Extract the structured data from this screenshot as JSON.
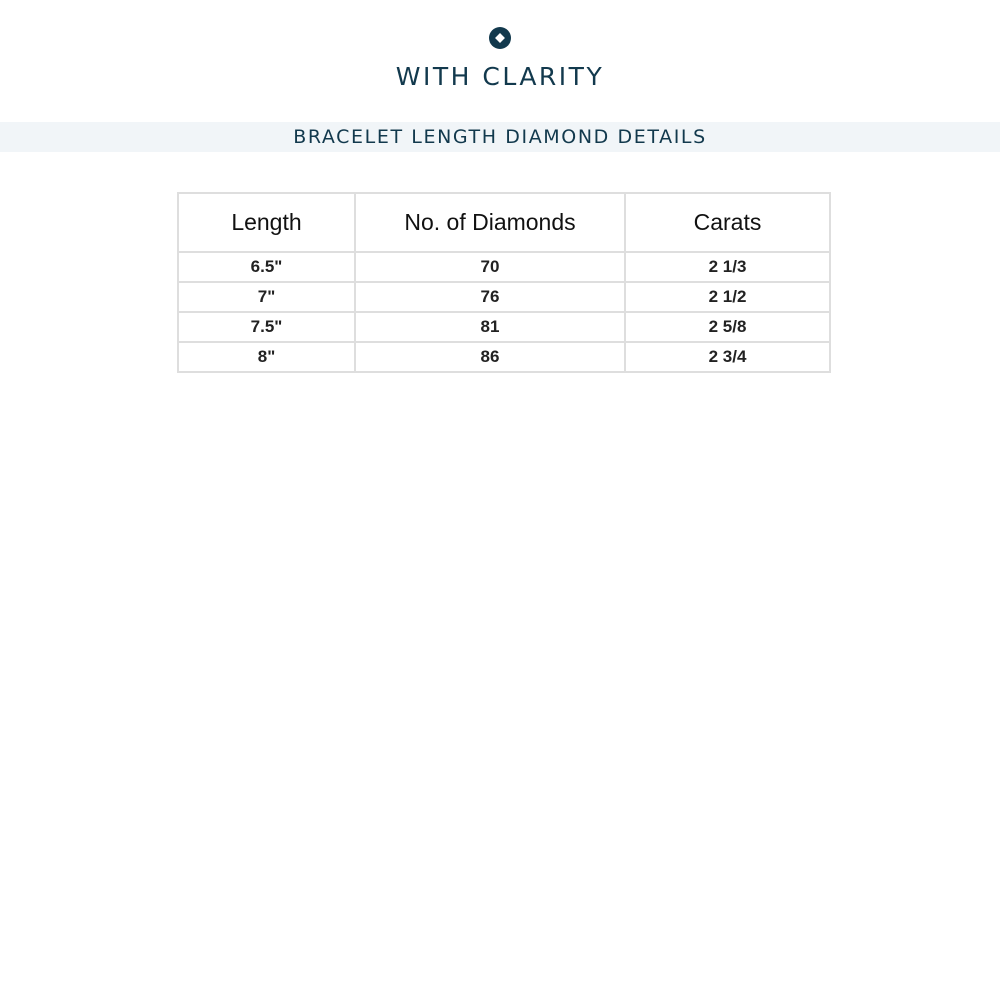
{
  "brand": {
    "name": "WITH CLARITY",
    "logo_icon": "diamond-in-circle-icon",
    "color": "#12394d"
  },
  "section_title": "BRACELET LENGTH DIAMOND DETAILS",
  "table": {
    "headers": [
      "Length",
      "No. of Diamonds",
      "Carats"
    ],
    "rows": [
      [
        "6.5\"",
        "70",
        "2 1/3"
      ],
      [
        "7\"",
        "76",
        "2 1/2"
      ],
      [
        "7.5\"",
        "81",
        "2 5/8"
      ],
      [
        "8\"",
        "86",
        "2 3/4"
      ]
    ]
  }
}
